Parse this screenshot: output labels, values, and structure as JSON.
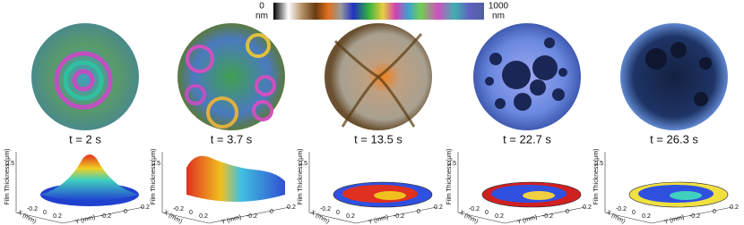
{
  "colorbar": {
    "min_label": "0",
    "min_unit": "nm",
    "max_label": "1000",
    "max_unit": "nm"
  },
  "panels": [
    {
      "time": "t = 2 s"
    },
    {
      "time": "t = 3.7 s"
    },
    {
      "time": "t = 13.5 s"
    },
    {
      "time": "t = 22.7 s"
    },
    {
      "time": "t = 26.3 s"
    }
  ],
  "axes": {
    "z_label": "Film Thickness (μm)",
    "x_label": "X (mm)",
    "y_label": "Y (mm)",
    "z_tick": "0.5",
    "xy_ticks": [
      "-0.2",
      "0",
      "0.2"
    ]
  }
}
